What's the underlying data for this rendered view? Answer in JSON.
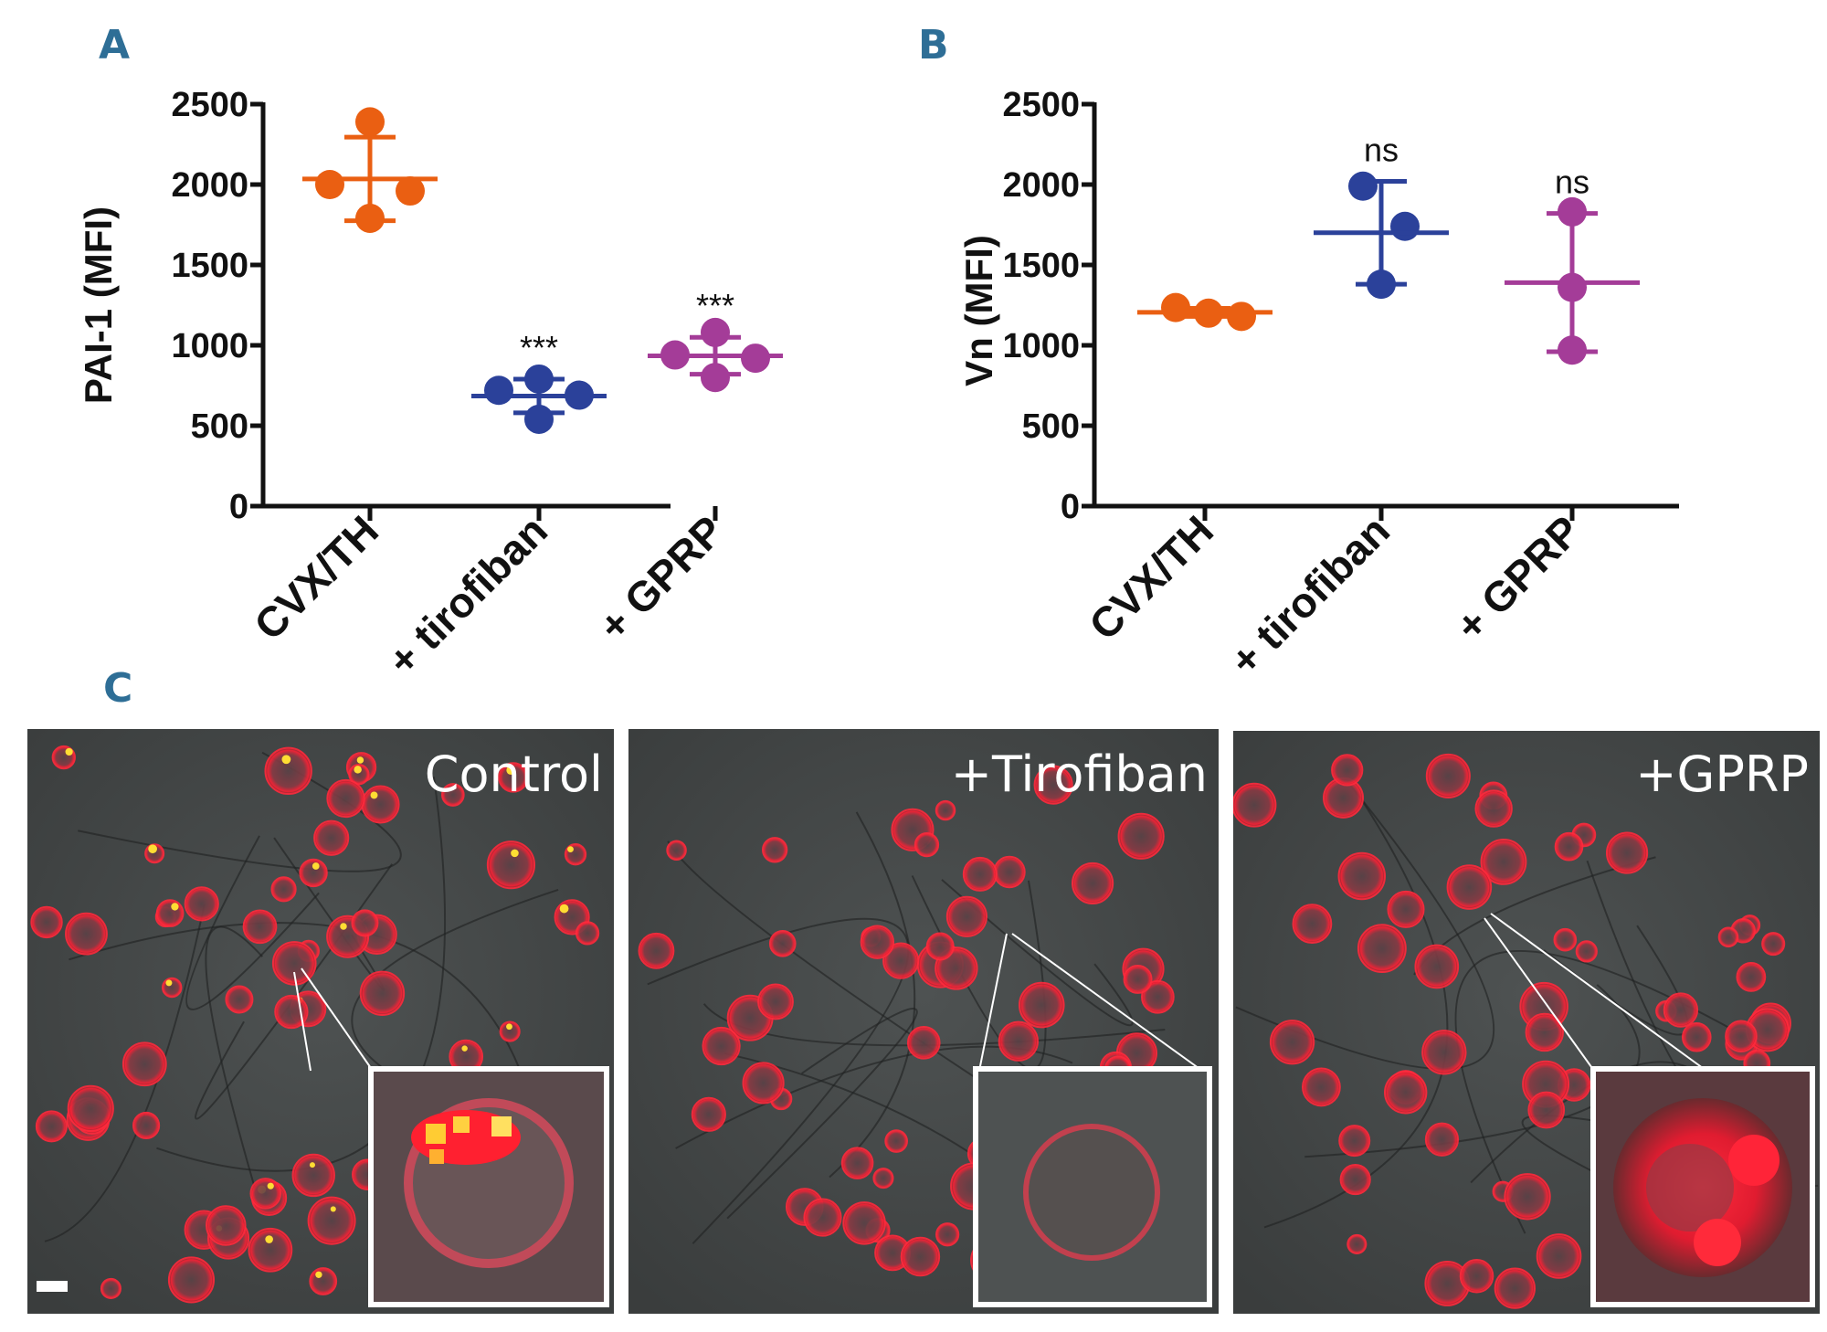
{
  "panels": {
    "a": "A",
    "b": "B",
    "c": "C"
  },
  "chart_data": [
    {
      "id": "A",
      "type": "scatter",
      "ylabel": "PAI-1 (MFI)",
      "ylim": [
        0,
        2500
      ],
      "yticks": [
        0,
        500,
        1000,
        1500,
        2000,
        2500
      ],
      "categories": [
        "CVX/TH",
        "+ tirofiban",
        "+ GPRP"
      ],
      "colors": [
        "#ea5f12",
        "#2b419a",
        "#a43c98"
      ],
      "points": [
        [
          2390,
          2000,
          1960,
          1790
        ],
        [
          790,
          720,
          690,
          540
        ],
        [
          1080,
          940,
          920,
          800
        ]
      ],
      "means": [
        2035,
        685,
        935
      ],
      "sd": [
        260,
        105,
        115
      ],
      "significance": [
        "",
        "***",
        "***"
      ]
    },
    {
      "id": "B",
      "type": "scatter",
      "ylabel": "Vn (MFI)",
      "ylim": [
        0,
        2500
      ],
      "yticks": [
        0,
        500,
        1000,
        1500,
        2000,
        2500
      ],
      "categories": [
        "CVX/TH",
        "+ tirofiban",
        "+ GPRP"
      ],
      "colors": [
        "#ea5f12",
        "#2b419a",
        "#a43c98"
      ],
      "points": [
        [
          1235,
          1200,
          1180
        ],
        [
          1990,
          1740,
          1380
        ],
        [
          1830,
          1360,
          970
        ]
      ],
      "means": [
        1205,
        1700,
        1390
      ],
      "sd": [
        25,
        320,
        430
      ],
      "significance": [
        "",
        "ns",
        "ns"
      ]
    }
  ],
  "images": {
    "control_label": "Control",
    "tirofiban_label": "+Tirofiban",
    "gprp_label": "+GPRP"
  }
}
